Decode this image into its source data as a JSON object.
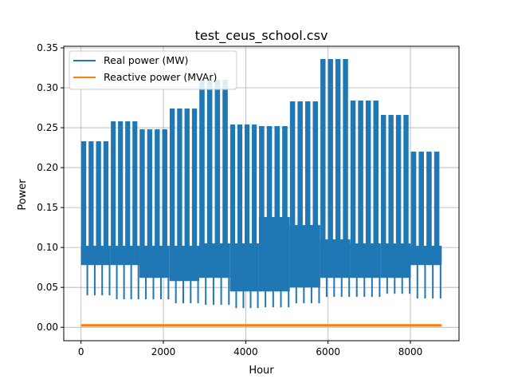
{
  "chart_data": {
    "type": "line",
    "title": "test_ceus_school.csv",
    "xlabel": "Hour",
    "ylabel": "Power",
    "xlim": [
      -420,
      9180
    ],
    "ylim": [
      -0.0168,
      0.352
    ],
    "xticks": [
      0,
      2000,
      4000,
      6000,
      8000
    ],
    "xtick_labels": [
      "0",
      "2000",
      "4000",
      "6000",
      "8000"
    ],
    "yticks": [
      0.0,
      0.05,
      0.1,
      0.15,
      0.2,
      0.25,
      0.3,
      0.35
    ],
    "ytick_labels": [
      "0.00",
      "0.05",
      "0.10",
      "0.15",
      "0.20",
      "0.25",
      "0.30",
      "0.35"
    ],
    "grid": true,
    "legend_position": "top-left",
    "colors": {
      "real": "#1f77b4",
      "reactive": "#ff7f0e",
      "grid": "#b0b0b0"
    },
    "series": [
      {
        "name": "Real power (MW)",
        "type": "envelope",
        "note_hours": [
          0,
          8760
        ],
        "blocks": [
          {
            "x": [
              0,
              720
            ],
            "daily_peak": 0.233,
            "weekday_base": 0.078,
            "weekday_base_upper": 0.102,
            "weekend_low": 0.04
          },
          {
            "x": [
              720,
              1420
            ],
            "daily_peak": 0.258,
            "weekday_base": 0.078,
            "weekday_base_upper": 0.102,
            "weekend_low": 0.035
          },
          {
            "x": [
              1420,
              2150
            ],
            "daily_peak": 0.248,
            "weekday_base": 0.062,
            "weekday_base_upper": 0.102,
            "weekend_low": 0.035
          },
          {
            "x": [
              2150,
              2870
            ],
            "daily_peak": 0.274,
            "weekday_base": 0.058,
            "weekday_base_upper": 0.102,
            "weekend_low": 0.03
          },
          {
            "x": [
              2870,
              3620
            ],
            "daily_peak": 0.31,
            "weekday_base": 0.062,
            "weekday_base_upper": 0.105,
            "weekend_low": 0.028
          },
          {
            "x": [
              3620,
              4320
            ],
            "daily_peak": 0.254,
            "weekday_base": 0.045,
            "weekday_base_upper": 0.105,
            "weekend_low": 0.024
          },
          {
            "x": [
              4320,
              5070
            ],
            "daily_peak": 0.252,
            "weekday_base": 0.045,
            "weekday_base_upper": 0.138,
            "weekend_low": 0.025
          },
          {
            "x": [
              5070,
              5810
            ],
            "daily_peak": 0.283,
            "weekday_base": 0.05,
            "weekday_base_upper": 0.128,
            "weekend_low": 0.03
          },
          {
            "x": [
              5810,
              6540
            ],
            "daily_peak": 0.336,
            "weekday_base": 0.062,
            "weekday_base_upper": 0.11,
            "weekend_low": 0.038
          },
          {
            "x": [
              6540,
              7280
            ],
            "daily_peak": 0.284,
            "weekday_base": 0.062,
            "weekday_base_upper": 0.105,
            "weekend_low": 0.038
          },
          {
            "x": [
              7280,
              8010
            ],
            "daily_peak": 0.266,
            "weekday_base": 0.062,
            "weekday_base_upper": 0.105,
            "weekend_low": 0.042
          },
          {
            "x": [
              8010,
              8760
            ],
            "daily_peak": 0.22,
            "weekday_base": 0.078,
            "weekday_base_upper": 0.102,
            "weekend_low": 0.036
          }
        ]
      },
      {
        "name": "Reactive power (MVAr)",
        "type": "envelope",
        "x": [
          0,
          8760
        ],
        "min": 0.001,
        "max": 0.004,
        "typical": 0.002
      }
    ]
  }
}
